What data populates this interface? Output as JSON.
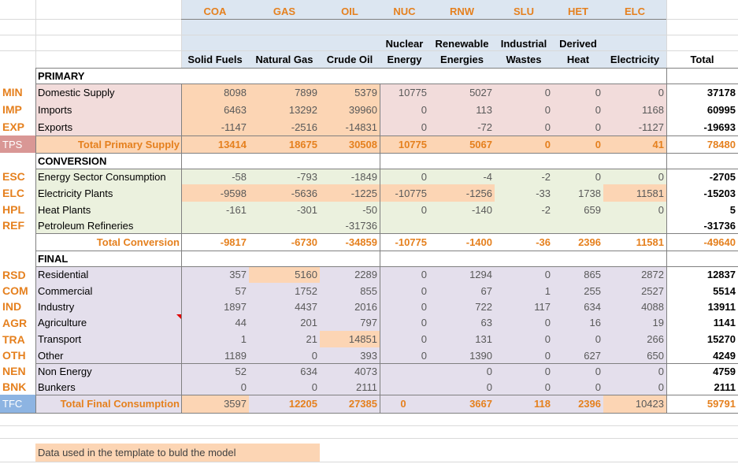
{
  "header": {
    "codes": [
      "COA",
      "GAS",
      "OIL",
      "NUC",
      "RNW",
      "SLU",
      "HET",
      "ELC"
    ],
    "labels_line1": [
      "",
      "",
      "",
      "Nuclear",
      "Renewable",
      "Industrial",
      "Derived",
      ""
    ],
    "labels_line2": [
      "Solid Fuels",
      "Natural Gas",
      "Crude Oil",
      "Energy",
      "Energies",
      "Wastes",
      "Heat",
      "Electricity"
    ],
    "total_label": "Total"
  },
  "sections": {
    "primary": "PRIMARY",
    "conversion": "CONVERSION",
    "final": "FINAL"
  },
  "rows": {
    "min": {
      "code": "MIN",
      "label": "Domestic Supply",
      "values": [
        "8098",
        "7899",
        "5379",
        "10775",
        "5027",
        "0",
        "0",
        "0"
      ],
      "total": "37178"
    },
    "imp": {
      "code": "IMP",
      "label": "Imports",
      "values": [
        "6463",
        "13292",
        "39960",
        "0",
        "113",
        "0",
        "0",
        "1168"
      ],
      "total": "60995"
    },
    "exp": {
      "code": "EXP",
      "label": "Exports",
      "values": [
        "-1147",
        "-2516",
        "-14831",
        "0",
        "-72",
        "0",
        "0",
        "-1127"
      ],
      "total": "-19693"
    },
    "tps": {
      "code": "TPS",
      "label": "Total Primary Supply",
      "values": [
        "13414",
        "18675",
        "30508",
        "10775",
        "5067",
        "0",
        "0",
        "41"
      ],
      "total": "78480"
    },
    "esc": {
      "code": "ESC",
      "label": "Energy Sector Consumption",
      "values": [
        "-58",
        "-793",
        "-1849",
        "0",
        "-4",
        "-2",
        "0",
        "0"
      ],
      "total": "-2705"
    },
    "elc": {
      "code": "ELC",
      "label": "Electricity Plants",
      "values": [
        "-9598",
        "-5636",
        "-1225",
        "-10775",
        "-1256",
        "-33",
        "1738",
        "11581"
      ],
      "total": "-15203"
    },
    "hpl": {
      "code": "HPL",
      "label": "Heat Plants",
      "values": [
        "-161",
        "-301",
        "-50",
        "0",
        "-140",
        "-2",
        "659",
        "0"
      ],
      "total": "5"
    },
    "ref": {
      "code": "REF",
      "label": "Petroleum Refineries",
      "values": [
        "",
        "",
        "-31736",
        "",
        "",
        "",
        "",
        ""
      ],
      "total": "-31736"
    },
    "tcv": {
      "code": "",
      "label": "Total Conversion",
      "values": [
        "-9817",
        "-6730",
        "-34859",
        "-10775",
        "-1400",
        "-36",
        "2396",
        "11581"
      ],
      "total": "-49640"
    },
    "rsd": {
      "code": "RSD",
      "label": "Residential",
      "values": [
        "357",
        "5160",
        "2289",
        "0",
        "1294",
        "0",
        "865",
        "2872"
      ],
      "total": "12837"
    },
    "com": {
      "code": "COM",
      "label": "Commercial",
      "values": [
        "57",
        "1752",
        "855",
        "0",
        "67",
        "1",
        "255",
        "2527"
      ],
      "total": "5514"
    },
    "ind": {
      "code": "IND",
      "label": "Industry",
      "values": [
        "1897",
        "4437",
        "2016",
        "0",
        "722",
        "117",
        "634",
        "4088"
      ],
      "total": "13911"
    },
    "agr": {
      "code": "AGR",
      "label": "Agriculture",
      "values": [
        "44",
        "201",
        "797",
        "0",
        "63",
        "0",
        "16",
        "19"
      ],
      "total": "1141"
    },
    "tra": {
      "code": "TRA",
      "label": "Transport",
      "values": [
        "1",
        "21",
        "14851",
        "0",
        "131",
        "0",
        "0",
        "266"
      ],
      "total": "15270"
    },
    "oth": {
      "code": "OTH",
      "label": "Other",
      "values": [
        "1189",
        "0",
        "393",
        "0",
        "1390",
        "0",
        "627",
        "650"
      ],
      "total": "4249"
    },
    "nen": {
      "code": "NEN",
      "label": "Non Energy",
      "values": [
        "52",
        "634",
        "4073",
        "",
        "0",
        "0",
        "0",
        "0"
      ],
      "total": "4759"
    },
    "bnk": {
      "code": "BNK",
      "label": "Bunkers",
      "values": [
        "0",
        "0",
        "2111",
        "",
        "0",
        "0",
        "0",
        "0"
      ],
      "total": "2111"
    },
    "tfc": {
      "code": "TFC",
      "label": "Total Final Consumption",
      "values": [
        "3597",
        "12205",
        "27385",
        "0",
        "3667",
        "118",
        "2396",
        "10423"
      ],
      "total": "59791"
    }
  },
  "legend": {
    "text": "Data used in the template to buld the model"
  },
  "colors": {
    "accent_orange": "#E5801E",
    "highlight_orange": "#FCD5B4",
    "header_blue": "#DCE6F1",
    "primary_pink": "#F2DCDB",
    "conversion_green": "#EBF1DE",
    "final_purple": "#E4DFEC",
    "tps_rose": "#D99795"
  }
}
